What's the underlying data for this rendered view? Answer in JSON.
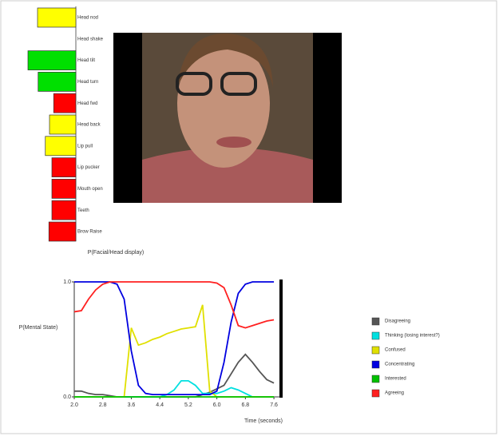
{
  "chart_data": [
    {
      "type": "hbar",
      "title": "P(Facial/Head display)",
      "categories": [
        "Head nod",
        "Head shake",
        "Head tilt",
        "Head turn",
        "Head fwd",
        "Head back",
        "Lip pull",
        "Lip pucker",
        "Mouth open",
        "Teeth",
        "Brow Raise"
      ],
      "values": [
        0.64,
        0,
        0.8,
        0.63,
        0.37,
        0.44,
        0.51,
        0.4,
        0.4,
        0.4,
        0.45
      ],
      "colors": [
        "#ffff00",
        "#ffff00",
        "#00e000",
        "#00e000",
        "#ff0000",
        "#ffff00",
        "#ffff00",
        "#ff0000",
        "#ff0000",
        "#ff0000",
        "#ff0000"
      ]
    },
    {
      "type": "line",
      "y_label": "P(Mental State)",
      "x_label": "Time (seconds)",
      "x": [
        2.0,
        2.2,
        2.4,
        2.6,
        2.8,
        3.0,
        3.2,
        3.4,
        3.6,
        3.8,
        4.0,
        4.2,
        4.4,
        4.6,
        4.8,
        5.0,
        5.2,
        5.4,
        5.6,
        5.8,
        6.0,
        6.2,
        6.4,
        6.6,
        6.8,
        7.0,
        7.2,
        7.4,
        7.6
      ],
      "xlim": [
        2.0,
        7.8
      ],
      "xticks": [
        {
          "value": 2.0,
          "label": "2.0"
        },
        2.8,
        3.6,
        4.4,
        5.2,
        {
          "value": 6.0,
          "label": "6.0"
        },
        6.8,
        7.6
      ],
      "ylim": [
        0,
        1
      ],
      "yticks": [
        {
          "value": 0,
          "label": "0.0"
        },
        {
          "value": 1,
          "label": "1.0"
        }
      ],
      "series": [
        {
          "name": "Disagreeing",
          "color": "#555555",
          "values": [
            0.05,
            0.05,
            0.03,
            0.02,
            0.02,
            0.01,
            0,
            0,
            0,
            0,
            0,
            0,
            0,
            0,
            0,
            0,
            0,
            0,
            0.02,
            0.04,
            0.07,
            0.1,
            0.2,
            0.3,
            0.37,
            0.3,
            0.22,
            0.15,
            0.12
          ]
        },
        {
          "name": "Thinking (losing interest?)",
          "color": "#00e0e0",
          "values": [
            0,
            0,
            0,
            0,
            0,
            0,
            0,
            0,
            0,
            0,
            0,
            0,
            0,
            0.02,
            0.06,
            0.14,
            0.14,
            0.1,
            0.03,
            0.03,
            0.03,
            0.05,
            0.08,
            0.06,
            0.03,
            0,
            0,
            0,
            0
          ]
        },
        {
          "name": "Confused",
          "color": "#e0e000",
          "values": [
            0,
            0,
            0,
            0,
            0,
            0,
            0,
            0,
            0.6,
            0.45,
            0.47,
            0.5,
            0.52,
            0.55,
            0.57,
            0.59,
            0.6,
            0.61,
            0.8,
            0.05,
            0,
            0,
            0,
            0,
            0,
            0,
            0,
            0,
            0
          ]
        },
        {
          "name": "Concentrating",
          "color": "#0000e0",
          "values": [
            1,
            1,
            1,
            1,
            1,
            1,
            0.98,
            0.85,
            0.4,
            0.1,
            0.03,
            0.02,
            0.02,
            0.02,
            0.02,
            0.02,
            0.02,
            0.02,
            0.02,
            0.02,
            0.05,
            0.3,
            0.65,
            0.9,
            0.98,
            1,
            1,
            1,
            1
          ]
        },
        {
          "name": "Interested",
          "color": "#00c000",
          "values": [
            0,
            0,
            0,
            0,
            0,
            0,
            0,
            0,
            0,
            0,
            0,
            0,
            0,
            0,
            0,
            0,
            0,
            0,
            0,
            0,
            0,
            0,
            0,
            0,
            0,
            0,
            0,
            0,
            0
          ]
        },
        {
          "name": "Agreeing",
          "color": "#ff2020",
          "values": [
            0.74,
            0.75,
            0.85,
            0.93,
            0.98,
            1,
            1,
            1,
            1,
            1,
            1,
            1,
            1,
            1,
            1,
            1,
            1,
            1,
            1,
            1,
            0.99,
            0.95,
            0.8,
            0.62,
            0.6,
            0.62,
            0.64,
            0.66,
            0.67
          ]
        }
      ]
    }
  ]
}
